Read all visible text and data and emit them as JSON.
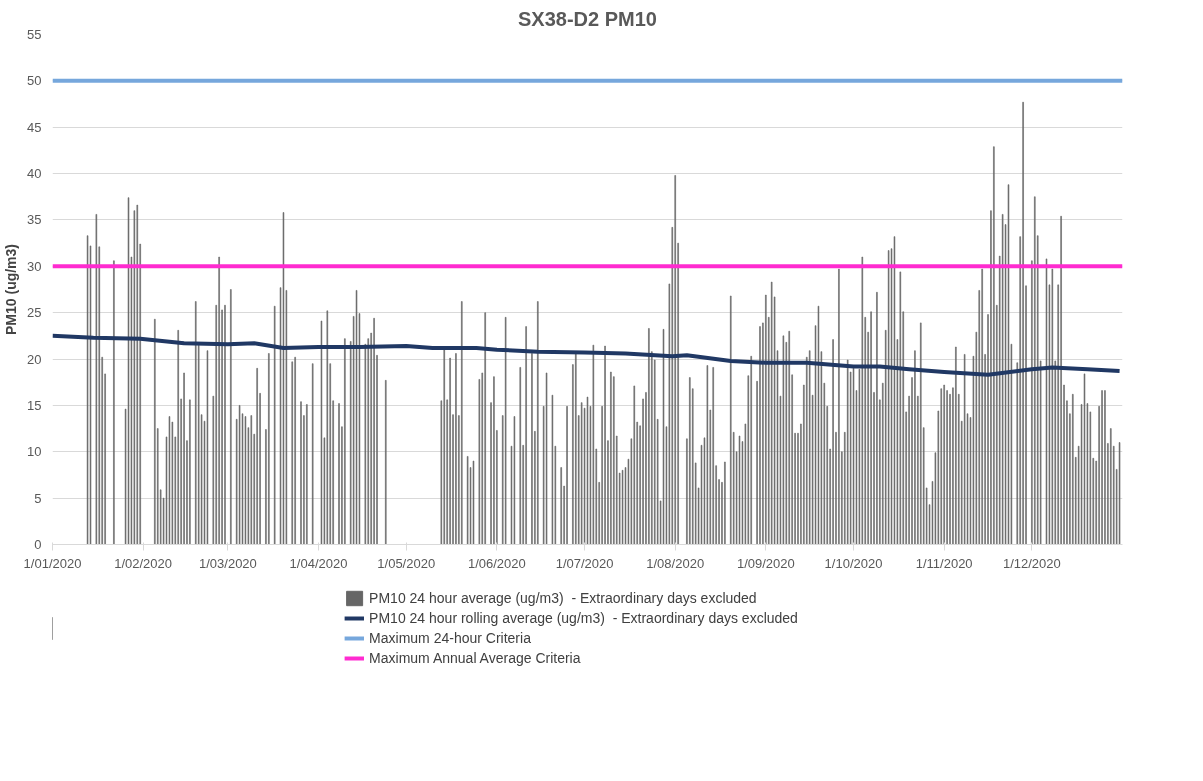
{
  "chart_data": {
    "type": "bar",
    "title": "SX38-D2 PM10",
    "ylabel": "PM10 (ug/m3)",
    "xlim": [
      "2020-01-01",
      "2021-01-01"
    ],
    "xticks": [
      {
        "value": "2020-01-01",
        "label": "1/01/2020"
      },
      {
        "value": "2020-02-01",
        "label": "1/02/2020"
      },
      {
        "value": "2020-03-01",
        "label": "1/03/2020"
      },
      {
        "value": "2020-04-01",
        "label": "1/04/2020"
      },
      {
        "value": "2020-05-01",
        "label": "1/05/2020"
      },
      {
        "value": "2020-06-01",
        "label": "1/06/2020"
      },
      {
        "value": "2020-07-01",
        "label": "1/07/2020"
      },
      {
        "value": "2020-08-01",
        "label": "1/08/2020"
      },
      {
        "value": "2020-09-01",
        "label": "1/09/2020"
      },
      {
        "value": "2020-10-01",
        "label": "1/10/2020"
      },
      {
        "value": "2020-11-01",
        "label": "1/11/2020"
      },
      {
        "value": "2020-12-01",
        "label": "1/12/2020"
      }
    ],
    "ylim": [
      0,
      55
    ],
    "yticks": [
      0,
      5,
      10,
      15,
      20,
      25,
      30,
      35,
      40,
      45,
      50,
      55
    ],
    "grid": "y",
    "legend": "bottom",
    "series": [
      {
        "name": "PM10 24 hour average (ug/m3)  - Extraordinary days excluded",
        "color": "#666666",
        "x": [
          "2020-01-13",
          "2020-01-14",
          "2020-01-16",
          "2020-01-17",
          "2020-01-18",
          "2020-01-19",
          "2020-01-22",
          "2020-01-26",
          "2020-01-27",
          "2020-01-28",
          "2020-01-29",
          "2020-01-30",
          "2020-01-31",
          "2020-02-05",
          "2020-02-06",
          "2020-02-07",
          "2020-02-08",
          "2020-02-09",
          "2020-02-10",
          "2020-02-11",
          "2020-02-12",
          "2020-02-13",
          "2020-02-14",
          "2020-02-15",
          "2020-02-16",
          "2020-02-17",
          "2020-02-19",
          "2020-02-20",
          "2020-02-21",
          "2020-02-22",
          "2020-02-23",
          "2020-02-25",
          "2020-02-26",
          "2020-02-27",
          "2020-02-28",
          "2020-02-29",
          "2020-03-02",
          "2020-03-04",
          "2020-03-05",
          "2020-03-06",
          "2020-03-07",
          "2020-03-08",
          "2020-03-09",
          "2020-03-10",
          "2020-03-11",
          "2020-03-12",
          "2020-03-14",
          "2020-03-15",
          "2020-03-17",
          "2020-03-19",
          "2020-03-20",
          "2020-03-21",
          "2020-03-23",
          "2020-03-24",
          "2020-03-26",
          "2020-03-27",
          "2020-03-28",
          "2020-03-30",
          "2020-04-02",
          "2020-04-03",
          "2020-04-04",
          "2020-04-05",
          "2020-04-06",
          "2020-04-08",
          "2020-04-09",
          "2020-04-10",
          "2020-04-12",
          "2020-04-13",
          "2020-04-14",
          "2020-04-15",
          "2020-04-17",
          "2020-04-18",
          "2020-04-19",
          "2020-04-20",
          "2020-04-21",
          "2020-04-24",
          "2020-05-13",
          "2020-05-14",
          "2020-05-15",
          "2020-05-16",
          "2020-05-17",
          "2020-05-18",
          "2020-05-19",
          "2020-05-20",
          "2020-05-22",
          "2020-05-23",
          "2020-05-24",
          "2020-05-26",
          "2020-05-27",
          "2020-05-28",
          "2020-05-30",
          "2020-05-31",
          "2020-06-01",
          "2020-06-03",
          "2020-06-04",
          "2020-06-06",
          "2020-06-07",
          "2020-06-09",
          "2020-06-10",
          "2020-06-11",
          "2020-06-13",
          "2020-06-14",
          "2020-06-15",
          "2020-06-17",
          "2020-06-18",
          "2020-06-20",
          "2020-06-21",
          "2020-06-23",
          "2020-06-24",
          "2020-06-25",
          "2020-06-27",
          "2020-06-28",
          "2020-06-29",
          "2020-06-30",
          "2020-07-01",
          "2020-07-02",
          "2020-07-03",
          "2020-07-04",
          "2020-07-05",
          "2020-07-06",
          "2020-07-07",
          "2020-07-08",
          "2020-07-09",
          "2020-07-10",
          "2020-07-11",
          "2020-07-12",
          "2020-07-13",
          "2020-07-14",
          "2020-07-15",
          "2020-07-16",
          "2020-07-17",
          "2020-07-18",
          "2020-07-19",
          "2020-07-20",
          "2020-07-21",
          "2020-07-22",
          "2020-07-23",
          "2020-07-24",
          "2020-07-25",
          "2020-07-26",
          "2020-07-27",
          "2020-07-28",
          "2020-07-29",
          "2020-07-30",
          "2020-07-31",
          "2020-08-01",
          "2020-08-02",
          "2020-08-05",
          "2020-08-06",
          "2020-08-07",
          "2020-08-08",
          "2020-08-09",
          "2020-08-10",
          "2020-08-11",
          "2020-08-12",
          "2020-08-13",
          "2020-08-14",
          "2020-08-15",
          "2020-08-16",
          "2020-08-17",
          "2020-08-18",
          "2020-08-20",
          "2020-08-21",
          "2020-08-22",
          "2020-08-23",
          "2020-08-24",
          "2020-08-25",
          "2020-08-26",
          "2020-08-27",
          "2020-08-29",
          "2020-08-30",
          "2020-08-31",
          "2020-09-01",
          "2020-09-02",
          "2020-09-03",
          "2020-09-04",
          "2020-09-05",
          "2020-09-06",
          "2020-09-07",
          "2020-09-08",
          "2020-09-09",
          "2020-09-10",
          "2020-09-11",
          "2020-09-12",
          "2020-09-13",
          "2020-09-14",
          "2020-09-15",
          "2020-09-16",
          "2020-09-17",
          "2020-09-18",
          "2020-09-19",
          "2020-09-20",
          "2020-09-21",
          "2020-09-22",
          "2020-09-23",
          "2020-09-24",
          "2020-09-25",
          "2020-09-26",
          "2020-09-27",
          "2020-09-28",
          "2020-09-29",
          "2020-09-30",
          "2020-10-01",
          "2020-10-02",
          "2020-10-03",
          "2020-10-04",
          "2020-10-05",
          "2020-10-06",
          "2020-10-07",
          "2020-10-08",
          "2020-10-09",
          "2020-10-10",
          "2020-10-11",
          "2020-10-12",
          "2020-10-13",
          "2020-10-14",
          "2020-10-15",
          "2020-10-16",
          "2020-10-17",
          "2020-10-18",
          "2020-10-19",
          "2020-10-20",
          "2020-10-21",
          "2020-10-22",
          "2020-10-23",
          "2020-10-24",
          "2020-10-25",
          "2020-10-26",
          "2020-10-27",
          "2020-10-28",
          "2020-10-29",
          "2020-10-30",
          "2020-10-31",
          "2020-11-01",
          "2020-11-02",
          "2020-11-03",
          "2020-11-04",
          "2020-11-05",
          "2020-11-06",
          "2020-11-07",
          "2020-11-08",
          "2020-11-09",
          "2020-11-10",
          "2020-11-11",
          "2020-11-12",
          "2020-11-13",
          "2020-11-14",
          "2020-11-15",
          "2020-11-16",
          "2020-11-17",
          "2020-11-18",
          "2020-11-19",
          "2020-11-20",
          "2020-11-21",
          "2020-11-22",
          "2020-11-23",
          "2020-11-24",
          "2020-11-26",
          "2020-11-27",
          "2020-11-28",
          "2020-11-29",
          "2020-12-01",
          "2020-12-02",
          "2020-12-03",
          "2020-12-04",
          "2020-12-06",
          "2020-12-07",
          "2020-12-08",
          "2020-12-09",
          "2020-12-10",
          "2020-12-11",
          "2020-12-12",
          "2020-12-13",
          "2020-12-14",
          "2020-12-15",
          "2020-12-16",
          "2020-12-17",
          "2020-12-18",
          "2020-12-19",
          "2020-12-20",
          "2020-12-21",
          "2020-12-22",
          "2020-12-23",
          "2020-12-24",
          "2020-12-25",
          "2020-12-26",
          "2020-12-27",
          "2020-12-28",
          "2020-12-29",
          "2020-12-30",
          "2020-12-31"
        ],
        "values": [
          33.3,
          32.2,
          35.6,
          32.1,
          20.2,
          18.4,
          30.6,
          14.6,
          37.4,
          31.0,
          36.0,
          36.6,
          32.4,
          24.3,
          12.5,
          5.9,
          5.0,
          11.6,
          13.8,
          13.2,
          11.6,
          23.1,
          15.7,
          18.5,
          11.2,
          15.6,
          26.2,
          21.5,
          14.0,
          13.3,
          20.9,
          16.0,
          25.8,
          31.0,
          25.3,
          25.8,
          27.5,
          13.5,
          15.0,
          14.1,
          13.8,
          12.6,
          13.9,
          11.9,
          19.0,
          16.3,
          12.4,
          20.6,
          25.7,
          27.7,
          35.8,
          27.4,
          19.7,
          20.2,
          15.4,
          13.9,
          15.1,
          19.5,
          24.1,
          11.5,
          25.2,
          19.5,
          15.5,
          15.2,
          12.7,
          22.2,
          21.9,
          24.6,
          27.4,
          24.9,
          21.6,
          22.2,
          22.8,
          24.4,
          20.4,
          17.7,
          15.5,
          21.0,
          15.6,
          20.1,
          14.0,
          20.6,
          13.9,
          26.2,
          9.5,
          8.3,
          9.0,
          17.8,
          18.5,
          25.0,
          15.3,
          18.1,
          12.3,
          13.9,
          24.5,
          10.6,
          13.8,
          19.1,
          10.7,
          23.5,
          20.6,
          12.2,
          26.2,
          14.9,
          18.5,
          16.1,
          10.6,
          8.3,
          6.3,
          14.9,
          19.4,
          20.6,
          13.9,
          15.3,
          14.7,
          15.9,
          14.9,
          21.5,
          10.3,
          6.7,
          14.9,
          21.4,
          11.2,
          18.6,
          18.1,
          11.7,
          7.7,
          8.0,
          8.3,
          9.2,
          11.4,
          17.1,
          13.2,
          12.8,
          15.7,
          16.4,
          23.3,
          20.8,
          19.9,
          13.5,
          4.7,
          23.2,
          12.7,
          28.1,
          34.2,
          39.8,
          32.5,
          11.4,
          18.0,
          16.8,
          8.8,
          6.1,
          10.7,
          11.5,
          19.3,
          14.5,
          19.1,
          8.5,
          7.0,
          6.7,
          8.9,
          26.8,
          12.1,
          10.0,
          11.7,
          11.1,
          13.0,
          18.2,
          20.3,
          17.6,
          23.5,
          23.9,
          26.9,
          24.5,
          28.3,
          26.7,
          20.9,
          16.0,
          22.5,
          21.8,
          23.0,
          18.3,
          12.0,
          12.0,
          13.0,
          17.2,
          20.2,
          20.9,
          16.1,
          23.6,
          25.7,
          20.8,
          17.4,
          14.9,
          10.3,
          22.1,
          12.1,
          29.7,
          10.0,
          12.1,
          19.9,
          18.6,
          19.0,
          16.6,
          18.9,
          31.0,
          24.5,
          22.9,
          25.1,
          16.4,
          27.2,
          15.6,
          17.4,
          23.1,
          31.7,
          31.9,
          33.2,
          22.1,
          29.4,
          25.1,
          14.3,
          16.0,
          18.0,
          20.9,
          16.0,
          23.9,
          12.6,
          6.1,
          4.3,
          6.8,
          9.9,
          14.4,
          16.8,
          17.2,
          16.6,
          16.2,
          16.9,
          21.3,
          16.2,
          13.3,
          20.5,
          14.1,
          13.7,
          20.3,
          22.9,
          27.4,
          29.7,
          20.5,
          24.8,
          36.0,
          42.9,
          25.8,
          31.1,
          35.6,
          34.5,
          38.8,
          21.6,
          19.6,
          33.2,
          47.7,
          27.9,
          30.6,
          37.5,
          33.3,
          19.8,
          30.8,
          28.0,
          29.7,
          19.8,
          28.0,
          35.4,
          17.2,
          15.5,
          14.1,
          16.2,
          9.4,
          10.6,
          15.1,
          18.4,
          15.2,
          14.3,
          9.3,
          9.0,
          14.9,
          16.6,
          16.6,
          10.9,
          12.5,
          10.6,
          8.1,
          11.0
        ]
      },
      {
        "name": "PM10 24 hour rolling average (ug/m3)  - Extraordinary days excluded",
        "type": "line",
        "color": "#203864",
        "x": [
          "2020-01-01",
          "2020-01-15",
          "2020-01-31",
          "2020-02-15",
          "2020-03-01",
          "2020-03-10",
          "2020-03-20",
          "2020-04-01",
          "2020-04-15",
          "2020-05-01",
          "2020-05-10",
          "2020-05-25",
          "2020-06-01",
          "2020-06-15",
          "2020-07-01",
          "2020-07-15",
          "2020-07-31",
          "2020-08-05",
          "2020-08-20",
          "2020-09-01",
          "2020-09-15",
          "2020-10-01",
          "2020-10-10",
          "2020-10-20",
          "2020-11-01",
          "2020-11-16",
          "2020-12-01",
          "2020-12-08",
          "2020-12-20",
          "2020-12-31"
        ],
        "values": [
          22.5,
          22.3,
          22.2,
          21.7,
          21.6,
          21.7,
          21.2,
          21.3,
          21.3,
          21.4,
          21.2,
          21.2,
          21.0,
          20.8,
          20.7,
          20.6,
          20.3,
          20.4,
          19.8,
          19.6,
          19.6,
          19.2,
          19.2,
          18.9,
          18.6,
          18.3,
          18.9,
          19.1,
          18.9,
          18.7
        ]
      }
    ],
    "ref_lines": [
      {
        "axis": "y",
        "value": 50,
        "label": "Maximum 24-hour Criteria",
        "color": "#76a7dc"
      },
      {
        "axis": "y",
        "value": 30,
        "label": "Maximum Annual Average Criteria",
        "color": "#ff2bd0"
      }
    ]
  }
}
